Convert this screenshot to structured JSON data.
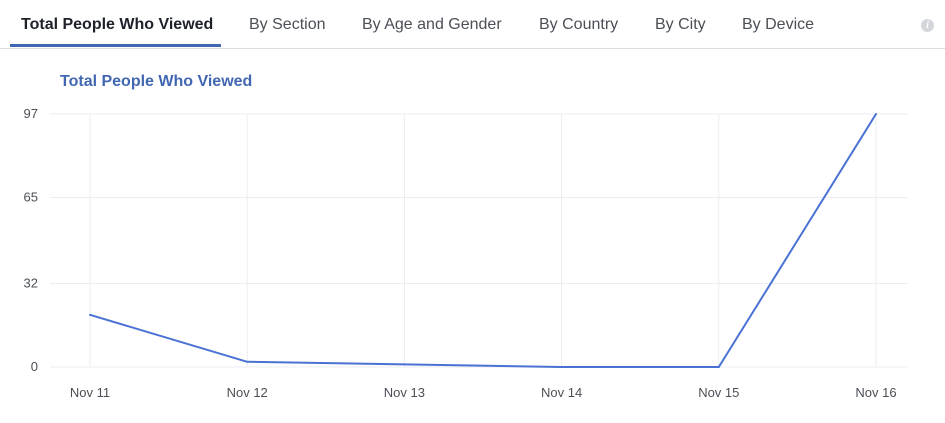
{
  "tabs": [
    {
      "label": "Total People Who Viewed",
      "active": true
    },
    {
      "label": "By Section",
      "active": false
    },
    {
      "label": "By Age and Gender",
      "active": false
    },
    {
      "label": "By Country",
      "active": false
    },
    {
      "label": "By City",
      "active": false
    },
    {
      "label": "By Device",
      "active": false
    }
  ],
  "info_icon": {
    "glyph": "i",
    "icon": "info-icon"
  },
  "colors": {
    "accent": "#4267b2",
    "line": "#4a72d4",
    "grid": "#ebedf0"
  },
  "chart_data": {
    "type": "line",
    "title": "Total People Who Viewed",
    "xlabel": "",
    "ylabel": "",
    "categories": [
      "Nov 11",
      "Nov 12",
      "Nov 13",
      "Nov 14",
      "Nov 15",
      "Nov 16"
    ],
    "series": [
      {
        "values": [
          20,
          2,
          1,
          0,
          0,
          97
        ]
      }
    ],
    "yticks": [
      0,
      32,
      65,
      97
    ],
    "ylim": [
      0,
      97
    ],
    "grid": true,
    "legend": "none"
  }
}
